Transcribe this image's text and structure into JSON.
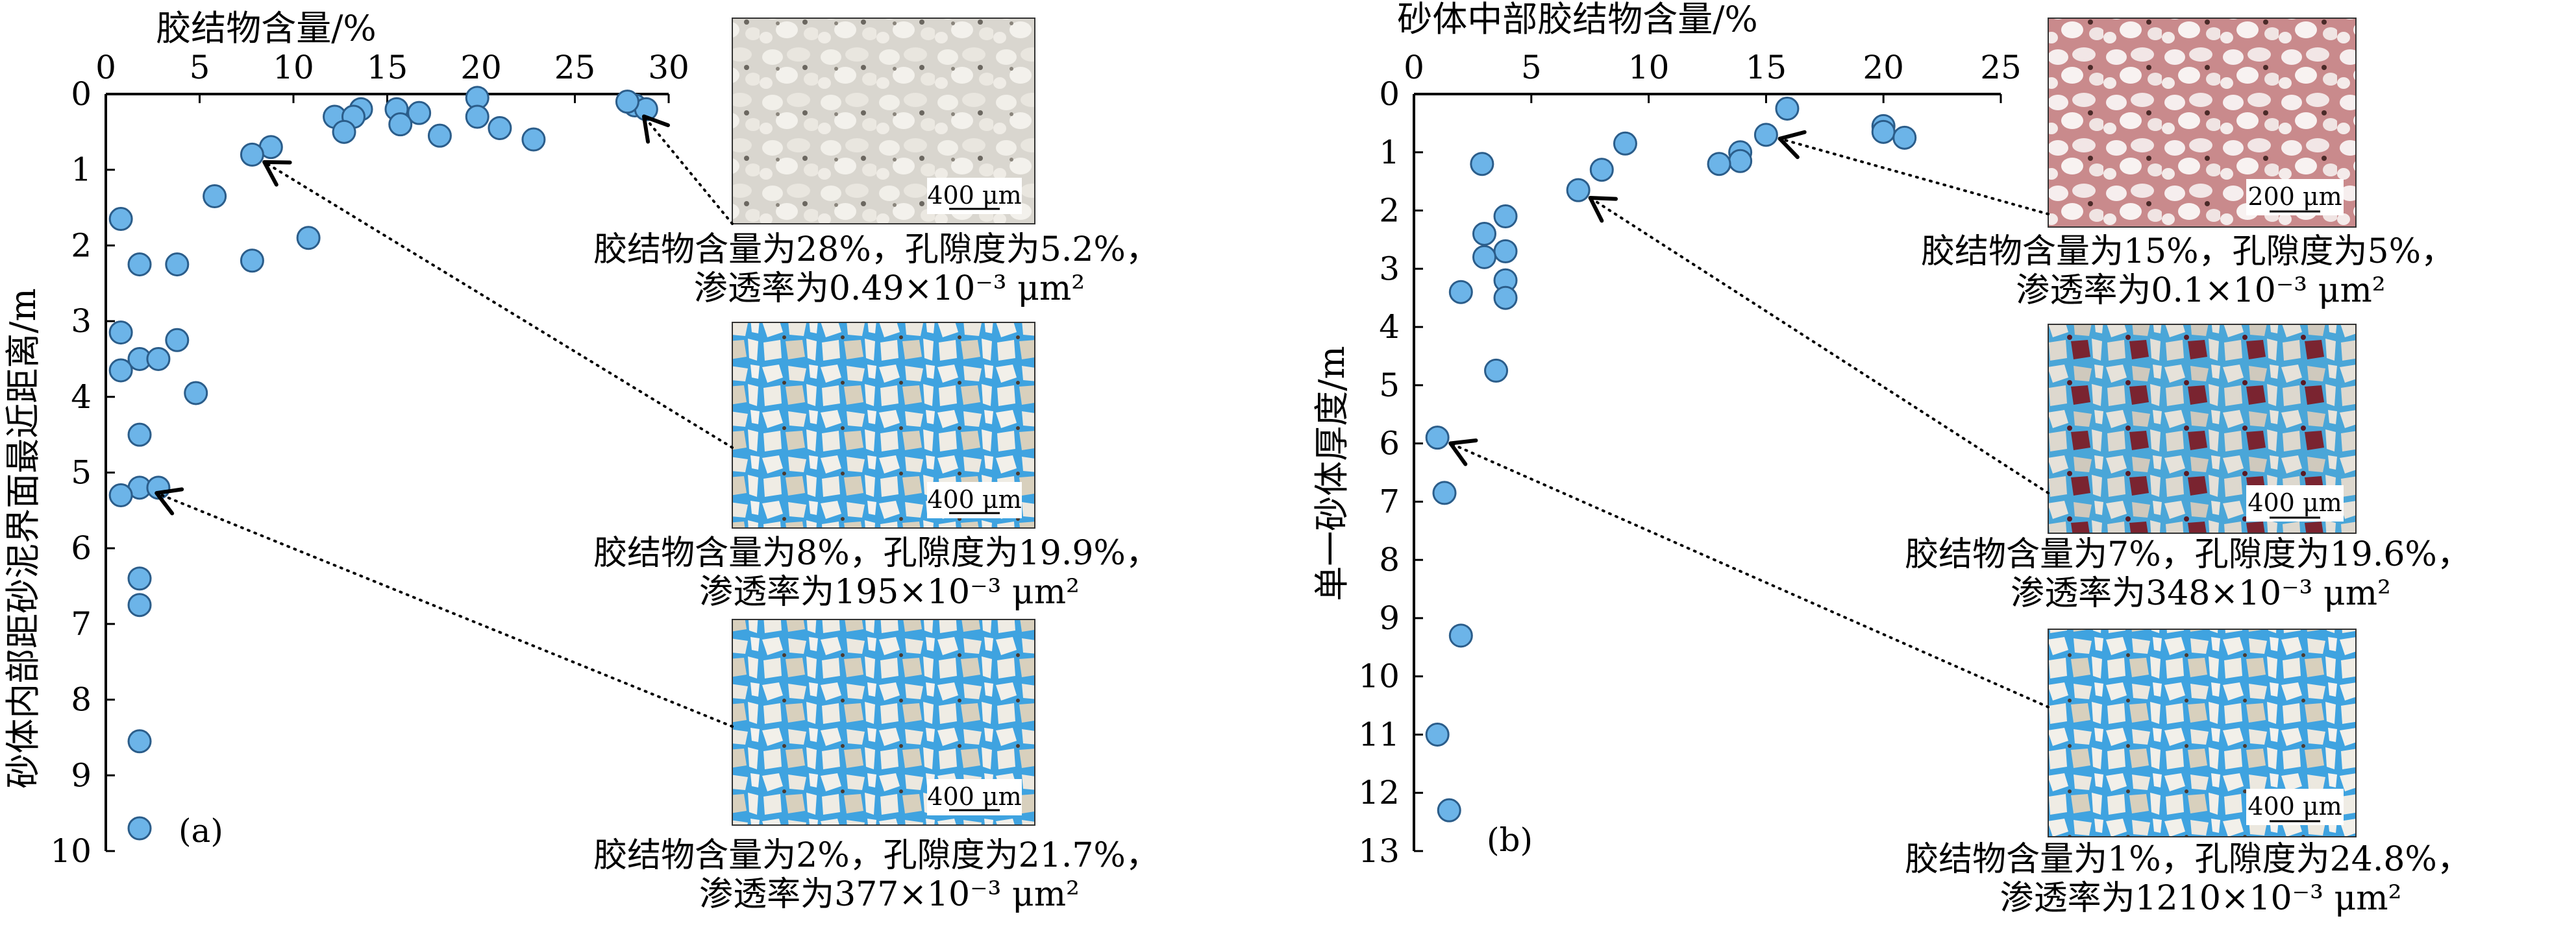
{
  "chart_data": [
    {
      "id": "a",
      "type": "scatter",
      "panel_label": "(a)",
      "xlabel": "胶结物含量/%",
      "ylabel": "砂体内部距砂泥界面最近距离/m",
      "x_axis_position": "top",
      "y_axis_inverted": true,
      "xlim": [
        0,
        30
      ],
      "ylim": [
        0,
        10
      ],
      "xticks": [
        0,
        5,
        10,
        15,
        20,
        25,
        30
      ],
      "yticks": [
        0,
        1,
        2,
        3,
        4,
        5,
        6,
        7,
        8,
        9,
        10
      ],
      "points": [
        {
          "x": 28.2,
          "y": 0.15
        },
        {
          "x": 28.8,
          "y": 0.2
        },
        {
          "x": 27.8,
          "y": 0.1
        },
        {
          "x": 19.8,
          "y": 0.05
        },
        {
          "x": 19.8,
          "y": 0.3
        },
        {
          "x": 21.0,
          "y": 0.45
        },
        {
          "x": 22.8,
          "y": 0.6
        },
        {
          "x": 15.5,
          "y": 0.2
        },
        {
          "x": 16.7,
          "y": 0.25
        },
        {
          "x": 15.7,
          "y": 0.4
        },
        {
          "x": 17.8,
          "y": 0.55
        },
        {
          "x": 13.6,
          "y": 0.2
        },
        {
          "x": 12.2,
          "y": 0.3
        },
        {
          "x": 13.2,
          "y": 0.3
        },
        {
          "x": 12.7,
          "y": 0.5
        },
        {
          "x": 8.8,
          "y": 0.7
        },
        {
          "x": 7.8,
          "y": 0.8
        },
        {
          "x": 5.8,
          "y": 1.35
        },
        {
          "x": 10.8,
          "y": 1.9
        },
        {
          "x": 7.8,
          "y": 2.2
        },
        {
          "x": 0.8,
          "y": 1.65
        },
        {
          "x": 1.8,
          "y": 2.25
        },
        {
          "x": 3.8,
          "y": 2.25
        },
        {
          "x": 0.8,
          "y": 3.15
        },
        {
          "x": 3.8,
          "y": 3.25
        },
        {
          "x": 1.8,
          "y": 3.5
        },
        {
          "x": 2.8,
          "y": 3.5
        },
        {
          "x": 0.8,
          "y": 3.65
        },
        {
          "x": 4.8,
          "y": 3.95
        },
        {
          "x": 1.8,
          "y": 4.5
        },
        {
          "x": 1.8,
          "y": 5.2
        },
        {
          "x": 2.8,
          "y": 5.2
        },
        {
          "x": 0.8,
          "y": 5.3
        },
        {
          "x": 1.8,
          "y": 6.4
        },
        {
          "x": 1.8,
          "y": 6.75
        },
        {
          "x": 1.8,
          "y": 8.55
        },
        {
          "x": 1.8,
          "y": 9.7
        }
      ],
      "annotations": [
        {
          "point": {
            "x": 28.2,
            "y": 0.15
          },
          "caption_line1": "胶结物含量为28%，孔隙度为5.2%，",
          "caption_line2": "渗透率为0.49×10⁻³ μm²",
          "scale_bar": "400 μm",
          "photo": "tight-calcite-cemented"
        },
        {
          "point": {
            "x": 7.8,
            "y": 0.8
          },
          "caption_line1": "胶结物含量为8%，孔隙度为19.9%，",
          "caption_line2": "渗透率为195×10⁻³ μm²",
          "scale_bar": "400 μm",
          "photo": "moderate-porosity"
        },
        {
          "point": {
            "x": 2.0,
            "y": 5.2
          },
          "caption_line1": "胶结物含量为2%，孔隙度为21.7%，",
          "caption_line2": "渗透率为377×10⁻³ μm²",
          "scale_bar": "400 μm",
          "photo": "high-porosity"
        }
      ]
    },
    {
      "id": "b",
      "type": "scatter",
      "panel_label": "(b)",
      "xlabel": "砂体中部胶结物含量/%",
      "ylabel": "单一砂体厚度/m",
      "x_axis_position": "top",
      "y_axis_inverted": true,
      "xlim": [
        0,
        25
      ],
      "ylim": [
        0,
        13
      ],
      "xticks": [
        0,
        5,
        10,
        15,
        20,
        25
      ],
      "yticks": [
        0,
        1,
        2,
        3,
        4,
        5,
        6,
        7,
        8,
        9,
        10,
        11,
        12,
        13
      ],
      "points": [
        {
          "x": 15.9,
          "y": 0.25
        },
        {
          "x": 20.0,
          "y": 0.55
        },
        {
          "x": 20.0,
          "y": 0.65
        },
        {
          "x": 20.9,
          "y": 0.75
        },
        {
          "x": 15.0,
          "y": 0.7
        },
        {
          "x": 13.9,
          "y": 1.0
        },
        {
          "x": 13.9,
          "y": 1.15
        },
        {
          "x": 13.0,
          "y": 1.2
        },
        {
          "x": 9.0,
          "y": 0.85
        },
        {
          "x": 8.0,
          "y": 1.3
        },
        {
          "x": 7.0,
          "y": 1.65
        },
        {
          "x": 2.9,
          "y": 1.2
        },
        {
          "x": 3.9,
          "y": 2.1
        },
        {
          "x": 3.0,
          "y": 2.4
        },
        {
          "x": 3.9,
          "y": 2.7
        },
        {
          "x": 3.0,
          "y": 2.8
        },
        {
          "x": 3.9,
          "y": 3.2
        },
        {
          "x": 3.9,
          "y": 3.5
        },
        {
          "x": 2.0,
          "y": 3.4
        },
        {
          "x": 3.5,
          "y": 4.75
        },
        {
          "x": 1.0,
          "y": 5.9
        },
        {
          "x": 1.3,
          "y": 6.85
        },
        {
          "x": 2.0,
          "y": 9.3
        },
        {
          "x": 1.0,
          "y": 11.0
        },
        {
          "x": 1.5,
          "y": 12.3
        }
      ],
      "annotations": [
        {
          "point": {
            "x": 15.0,
            "y": 0.7
          },
          "caption_line1": "胶结物含量为15%，孔隙度为5%，",
          "caption_line2": "渗透率为0.1×10⁻³ μm²",
          "scale_bar": "200 μm",
          "photo": "tight-pink-stained"
        },
        {
          "point": {
            "x": 7.0,
            "y": 1.65
          },
          "caption_line1": "胶结物含量为7%，孔隙度为19.6%，",
          "caption_line2": "渗透率为348×10⁻³ μm²",
          "scale_bar": "400 μm",
          "photo": "moderate-porosity-dark"
        },
        {
          "point": {
            "x": 1.0,
            "y": 5.9
          },
          "caption_line1": "胶结物含量为1%，孔隙度为24.8%，",
          "caption_line2": "渗透率为1210×10⁻³ μm²",
          "scale_bar": "400 μm",
          "photo": "high-porosity-blue"
        }
      ]
    }
  ],
  "colors": {
    "marker_fill": "#6cb4e8",
    "marker_edge": "#2b5d8a",
    "pore_blue": "#3fa3e0"
  }
}
